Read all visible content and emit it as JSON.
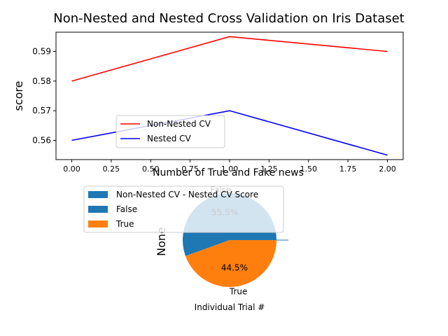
{
  "figure": {
    "suptitle": "Non-Nested and Nested Cross Validation on Iris Dataset"
  },
  "chart_data": [
    {
      "type": "line",
      "title": "",
      "xlabel": "",
      "ylabel": "score",
      "xlim": [
        -0.1,
        2.1
      ],
      "ylim": [
        0.5535,
        0.5965
      ],
      "x": [
        0,
        1,
        2
      ],
      "xticks": [
        0.0,
        0.25,
        0.5,
        0.75,
        1.0,
        1.25,
        1.5,
        1.75,
        2.0
      ],
      "xtick_labels": [
        "0.00",
        "0.25",
        "0.50",
        "0.75",
        "1.00",
        "1.25",
        "1.50",
        "1.75",
        "2.00"
      ],
      "yticks": [
        0.56,
        0.57,
        0.58,
        0.59
      ],
      "ytick_labels": [
        "0.56",
        "0.57",
        "0.58",
        "0.59"
      ],
      "grid": false,
      "legend_position": "lower-center",
      "series": [
        {
          "name": "Non-Nested CV",
          "values": [
            0.58,
            0.595,
            0.59
          ],
          "color": "#ff0000"
        },
        {
          "name": "Nested CV",
          "values": [
            0.56,
            0.57,
            0.555
          ],
          "color": "#0000ff"
        }
      ]
    },
    {
      "type": "bar",
      "title": "",
      "xlabel": "Individual Trial #",
      "ylabel": "",
      "legend_entry": "Non-Nested CV - Nested CV Score",
      "color": "#1f77b4"
    },
    {
      "type": "pie",
      "title": "Number of True and Fake news",
      "ylabel": "None",
      "labels": [
        "False",
        "True"
      ],
      "values": [
        55.5,
        44.5
      ],
      "pct_labels": [
        "55.5%",
        "44.5%"
      ],
      "colors": [
        "#1f77b4",
        "#ff7f0e"
      ],
      "legend_position": "upper-left",
      "legend_entries": [
        "Non-Nested CV - Nested CV Score",
        "False",
        "True"
      ]
    }
  ]
}
